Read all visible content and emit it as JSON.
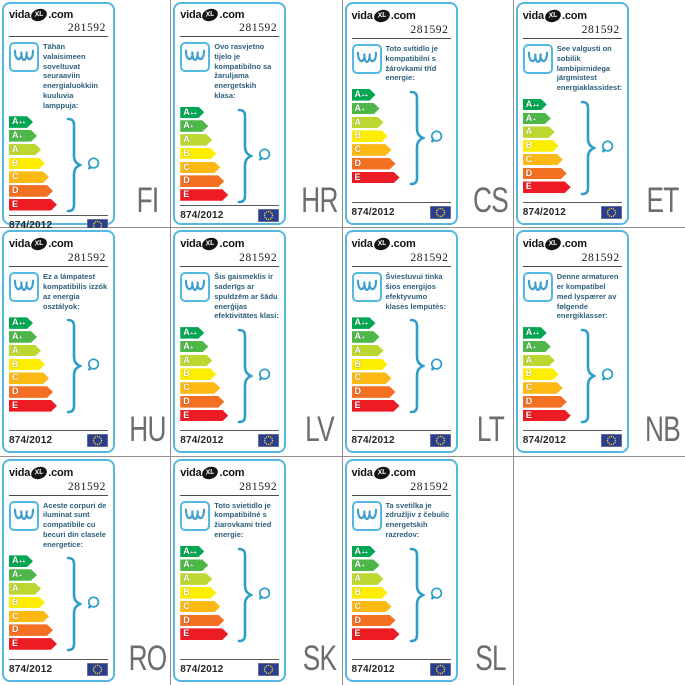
{
  "sheet": {
    "columns": 4,
    "rows": 3,
    "grid_line_color": "#8f8f8f"
  },
  "card": {
    "brand": {
      "prefix": "vida",
      "mark": "XL",
      "suffix": ".com"
    },
    "product_number": "281592",
    "regulation_number": "874/2012",
    "colors": {
      "card_border": "#55b8e0",
      "graphic_blue": "#2d9fc6",
      "description_text": "#2c607c",
      "eu_flag_bg": "#2a3e8f",
      "eu_flag_star": "#ffd617"
    },
    "energy_classes": [
      {
        "name": "A++",
        "base": "A",
        "sup": "++",
        "color": "#00a651"
      },
      {
        "name": "A+",
        "base": "A",
        "sup": "+",
        "color": "#4db848"
      },
      {
        "name": "A",
        "base": "A",
        "sup": "",
        "color": "#bed630"
      },
      {
        "name": "B",
        "base": "B",
        "sup": "",
        "color": "#fdee00"
      },
      {
        "name": "C",
        "base": "C",
        "sup": "",
        "color": "#fdb913"
      },
      {
        "name": "D",
        "base": "D",
        "sup": "",
        "color": "#f36f21"
      },
      {
        "name": "E",
        "base": "E",
        "sup": "",
        "color": "#ed1c24"
      }
    ],
    "icons": [
      "luminaire-icon",
      "brace-icon",
      "bulb-icon",
      "eu-flag"
    ]
  },
  "labels": [
    {
      "lang": "FI",
      "text": "Tähän valaisimeen soveltuvat seuraaviin energialuokkiin kuulu­via lamppuja:"
    },
    {
      "lang": "HR",
      "text": "Ovo rasvjetno tijelo je kompatibilno sa žaruljama energetskih klasa:"
    },
    {
      "lang": "CS",
      "text": "Toto svítidlo je kompatibilní s žárovkami tříd energie:"
    },
    {
      "lang": "ET",
      "text": "See valgusti on sobilik lambipirnidega järgmist­est energiaklassidest:"
    },
    {
      "lang": "HU",
      "text": "Ez a lámpatest kompatibilis izzók az energia osztályok:"
    },
    {
      "lang": "LV",
      "text": "Šis gaismeklis ir saderīgs ar spuldzēm ar šādu enerģijas efektivitātes klasi:"
    },
    {
      "lang": "LT",
      "text": "Šviestuvui tinka šios energijos efektyvumo klasės lemputės:"
    },
    {
      "lang": "NB",
      "text": "Denne armaturen er kompatibel med ly­spærer av følgende energiklasser:"
    },
    {
      "lang": "RO",
      "text": "Aceste corpuri de iluminat sunt compatibile cu becuri din clasele energetice:"
    },
    {
      "lang": "SK",
      "text": "Toto svietidlo je kompatibilné s žiarovkami tried energie:"
    },
    {
      "lang": "SL",
      "text": "Ta svetilka je združljiv z čebulic energetskih razredov:"
    }
  ]
}
